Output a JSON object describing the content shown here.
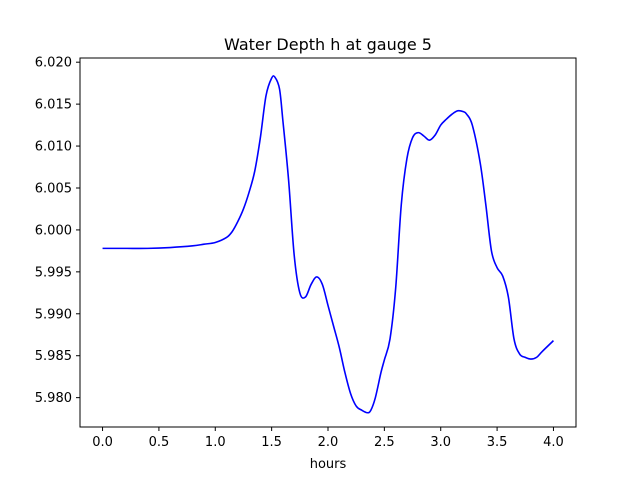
{
  "chart_data": {
    "type": "line",
    "title": "Water Depth h at gauge 5",
    "xlabel": "hours",
    "ylabel": "",
    "xlim": [
      -0.2,
      4.2
    ],
    "ylim": [
      5.9765,
      6.0205
    ],
    "xticks": [
      0.0,
      0.5,
      1.0,
      1.5,
      2.0,
      2.5,
      3.0,
      3.5,
      4.0
    ],
    "xtick_labels": [
      "0.0",
      "0.5",
      "1.0",
      "1.5",
      "2.0",
      "2.5",
      "3.0",
      "3.5",
      "4.0"
    ],
    "yticks": [
      5.98,
      5.985,
      5.99,
      5.995,
      6.0,
      6.005,
      6.01,
      6.015,
      6.02
    ],
    "ytick_labels": [
      "5.980",
      "5.985",
      "5.990",
      "5.995",
      "6.000",
      "6.005",
      "6.010",
      "6.015",
      "6.020"
    ],
    "grid": false,
    "line_color": "#0000ff",
    "series": [
      {
        "x": [
          0.0,
          0.2,
          0.4,
          0.6,
          0.8,
          0.9,
          1.0,
          1.1,
          1.15,
          1.2,
          1.25,
          1.3,
          1.35,
          1.4,
          1.45,
          1.5,
          1.53,
          1.57,
          1.6,
          1.65,
          1.7,
          1.75,
          1.8,
          1.85,
          1.9,
          1.95,
          2.0,
          2.05,
          2.1,
          2.15,
          2.2,
          2.25,
          2.3,
          2.35,
          2.38,
          2.42,
          2.47,
          2.5,
          2.55,
          2.6,
          2.65,
          2.7,
          2.75,
          2.8,
          2.85,
          2.9,
          2.95,
          3.0,
          3.05,
          3.1,
          3.15,
          3.2,
          3.23,
          3.28,
          3.35,
          3.4,
          3.45,
          3.5,
          3.55,
          3.6,
          3.65,
          3.7,
          3.75,
          3.8,
          3.85,
          3.9,
          4.0
        ],
        "y": [
          5.9978,
          5.9978,
          5.9978,
          5.9979,
          5.9981,
          5.9983,
          5.9985,
          5.9991,
          5.9998,
          6.001,
          6.0025,
          6.0045,
          6.007,
          6.011,
          6.016,
          6.0181,
          6.0182,
          6.0168,
          6.013,
          6.006,
          5.997,
          5.9925,
          5.992,
          5.9935,
          5.9944,
          5.9935,
          5.991,
          5.9885,
          5.986,
          5.983,
          5.9805,
          5.979,
          5.9785,
          5.9782,
          5.9785,
          5.98,
          5.983,
          5.9845,
          5.987,
          5.993,
          6.003,
          6.0085,
          6.011,
          6.0116,
          6.0112,
          6.0107,
          6.0113,
          6.0125,
          6.0132,
          6.0138,
          6.0142,
          6.0141,
          6.0138,
          6.0125,
          6.008,
          6.003,
          5.9975,
          5.9955,
          5.9945,
          5.992,
          5.987,
          5.9852,
          5.9848,
          5.9846,
          5.9848,
          5.9855,
          5.9868
        ]
      }
    ]
  }
}
